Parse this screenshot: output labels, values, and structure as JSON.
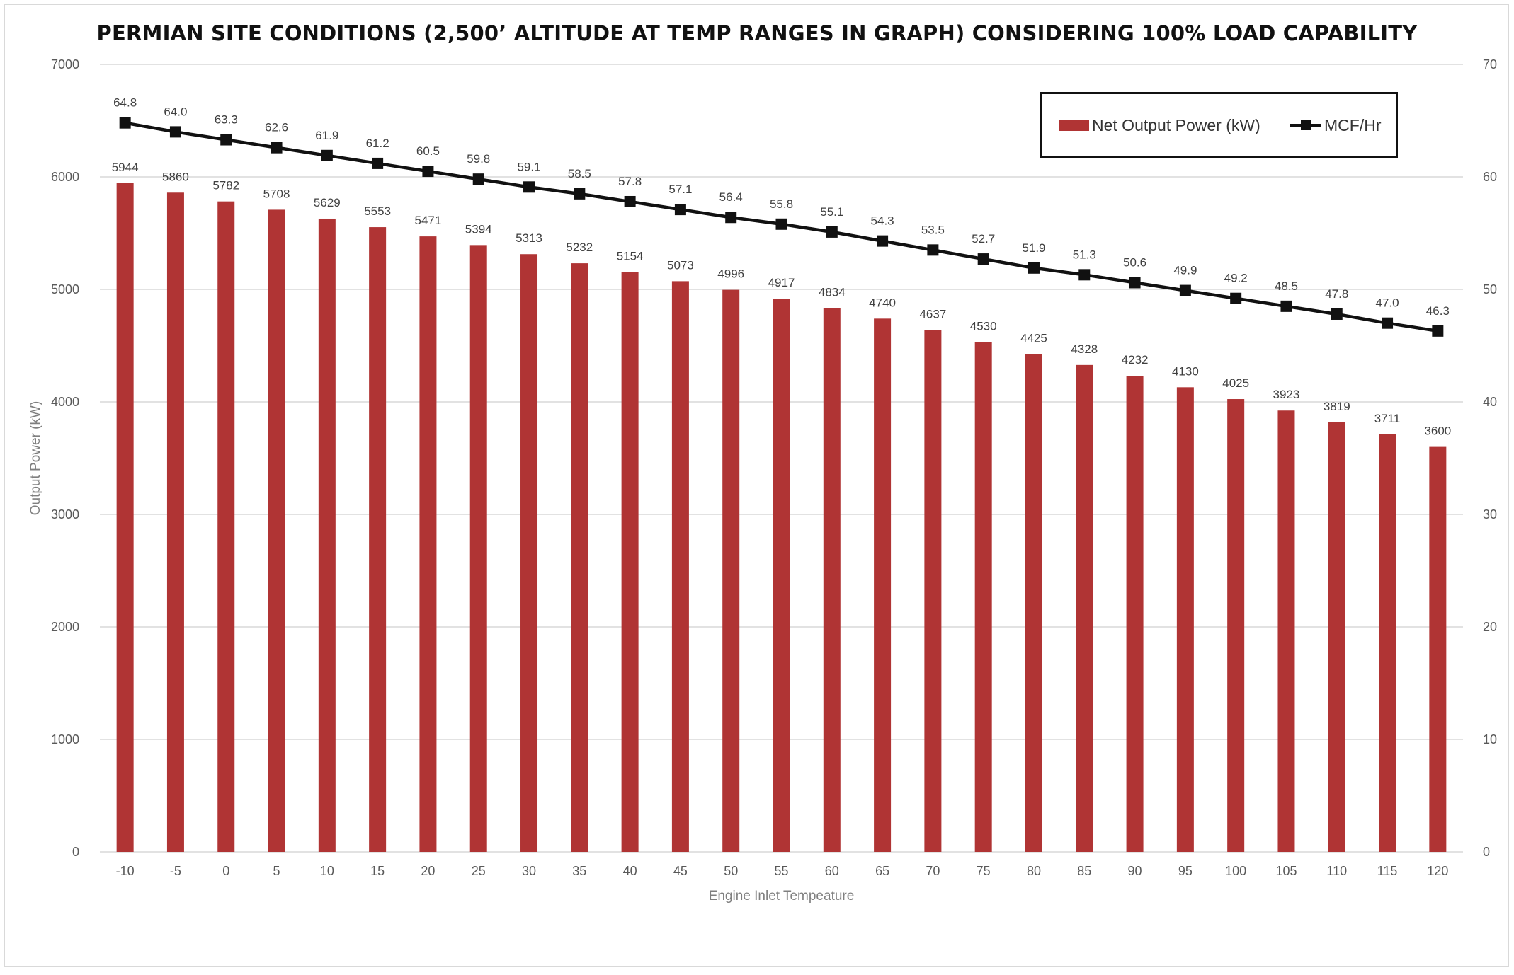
{
  "chart_data": {
    "type": "bar",
    "title": "PERMIAN SITE CONDITIONS (2,500’ ALTITUDE AT TEMP RANGES IN GRAPH) CONSIDERING 100% LOAD CAPABILITY",
    "xlabel": "Engine Inlet Tempeature",
    "ylabel": "Output Power (kW)",
    "y2label": "",
    "categories": [
      "-10",
      "-5",
      "0",
      "5",
      "10",
      "15",
      "20",
      "25",
      "30",
      "35",
      "40",
      "45",
      "50",
      "55",
      "60",
      "65",
      "70",
      "75",
      "80",
      "85",
      "90",
      "95",
      "100",
      "105",
      "110",
      "115",
      "120"
    ],
    "series": [
      {
        "name": "Net Output Power (kW)",
        "type": "bar",
        "axis": "left",
        "color": "#b03434",
        "values": [
          5944,
          5860,
          5782,
          5708,
          5629,
          5553,
          5471,
          5394,
          5313,
          5232,
          5154,
          5073,
          4996,
          4917,
          4834,
          4740,
          4637,
          4530,
          4425,
          4328,
          4232,
          4130,
          4025,
          3923,
          3819,
          3711,
          3600
        ]
      },
      {
        "name": "MCF/Hr",
        "type": "line",
        "axis": "right",
        "color": "#111111",
        "marker": "square",
        "values": [
          64.8,
          64.0,
          63.3,
          62.6,
          61.9,
          61.2,
          60.5,
          59.8,
          59.1,
          58.5,
          57.8,
          57.1,
          56.4,
          55.8,
          55.1,
          54.3,
          53.5,
          52.7,
          51.9,
          51.3,
          50.6,
          49.9,
          49.2,
          48.5,
          47.8,
          47.0,
          46.3
        ]
      }
    ],
    "ylim": [
      0,
      7000
    ],
    "yticks": [
      "0",
      "1000",
      "2000",
      "3000",
      "4000",
      "5000",
      "6000",
      "7000"
    ],
    "y2lim": [
      0,
      70
    ],
    "y2ticks": [
      "0",
      "10",
      "20",
      "30",
      "40",
      "50",
      "60",
      "70"
    ],
    "grid": true,
    "legend_position": "top-right"
  }
}
